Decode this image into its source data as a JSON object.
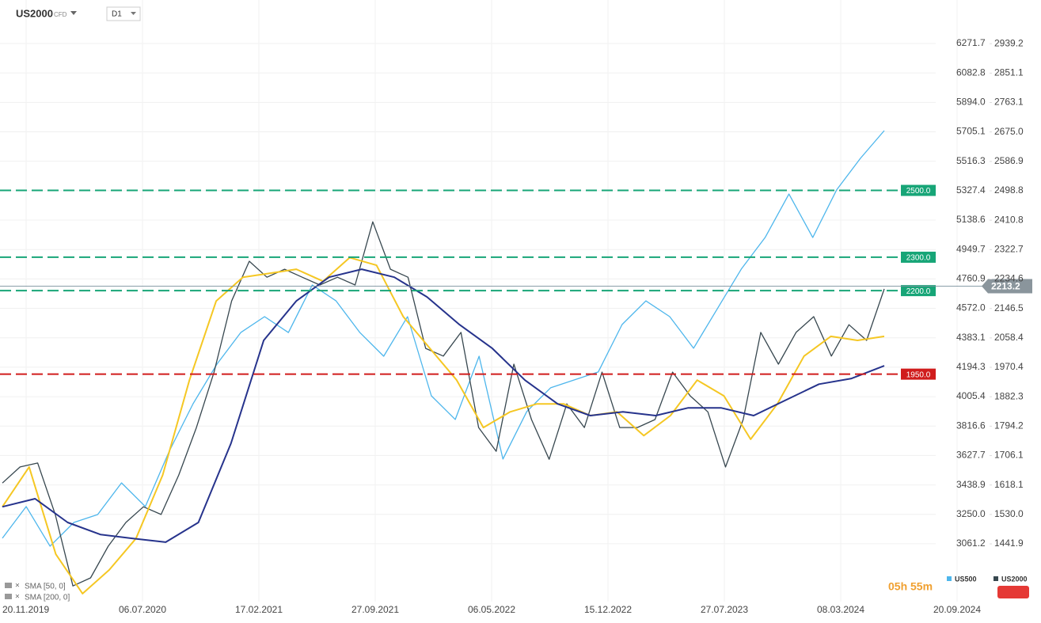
{
  "chart_data": {
    "type": "line",
    "title": "US2000",
    "subtitle": "CFD",
    "timeframe": "D1",
    "countdown": "05h 55m",
    "x_labels": [
      "20.11.2019",
      "06.07.2020",
      "17.02.2021",
      "27.09.2021",
      "06.05.2022",
      "15.12.2022",
      "27.07.2023",
      "08.03.2024",
      "20.09.2024"
    ],
    "ylim": [
      2690,
      6551
    ],
    "yticks": [
      6271.7,
      6082.8,
      {
        "value": 5894,
        "label": "5894.0"
      },
      5705.1,
      5516.3,
      5327.4,
      5138.6,
      4949.7,
      4760.9,
      {
        "value": 4572,
        "label": "4572.0"
      },
      4383.1,
      4194.3,
      4005.4,
      3816.6,
      3627.7,
      3438.9,
      {
        "value": 3250,
        "label": "3250.0"
      },
      3061.2
    ],
    "y2lim": [
      1269,
      3070
    ],
    "y2ticks": [
      2939.2,
      2851.1,
      2763.1,
      {
        "value": 2675,
        "label": "2675.0"
      },
      2586.9,
      2498.8,
      2410.8,
      2322.7,
      2234.6,
      2146.5,
      2058.4,
      1970.4,
      1882.3,
      1794.2,
      1706.1,
      1618.1,
      {
        "value": 1530,
        "label": "1530.0"
      },
      1441.9
    ],
    "grid": true,
    "last_value": 2213.2,
    "levels": [
      {
        "value": 2500,
        "label": "2500.0",
        "color": "#17a577"
      },
      {
        "value": 2300,
        "label": "2300.0",
        "color": "#17a577"
      },
      {
        "value": 2200,
        "label": "2200.0",
        "color": "#17a577"
      },
      {
        "value": 1950,
        "label": "1950.0",
        "color": "#d01c1c"
      }
    ],
    "series": [
      {
        "name": "US500",
        "color": "#4db6ec",
        "axis": "y",
        "values": [
          3097,
          3300,
          3046,
          3198,
          3249,
          3452,
          3300,
          3655,
          3960,
          4214,
          4417,
          4519,
          4417,
          4722,
          4620,
          4417,
          4265,
          4519,
          4011,
          3859,
          4265,
          3605,
          3910,
          4062,
          4113,
          4164,
          4468,
          4620,
          4519,
          4316,
          4570,
          4824,
          5027,
          5306,
          5027,
          5332,
          5535,
          5713
        ]
      },
      {
        "name": "US2000",
        "color": "#37474f",
        "axis": "y2",
        "values": [
          1624,
          1672,
          1684,
          1530,
          1316,
          1340,
          1435,
          1506,
          1553,
          1530,
          1648,
          1790,
          1956,
          2169,
          2288,
          2240,
          2264,
          2240,
          2217,
          2240,
          2217,
          2406,
          2264,
          2240,
          2027,
          2004,
          2075,
          1790,
          1719,
          1980,
          1814,
          1695,
          1861,
          1790,
          1956,
          1790,
          1790,
          1814,
          1956,
          1885,
          1837,
          1672,
          1814,
          2075,
          1980,
          2075,
          2122,
          2004,
          2098,
          2051,
          2205
        ]
      },
      {
        "name": "SMA [50, 0]",
        "color": "#f5c723",
        "axis": "y2",
        "values": [
          1553,
          1672,
          1411,
          1293,
          1364,
          1458,
          1648,
          1932,
          2169,
          2240,
          2252,
          2264,
          2228,
          2299,
          2276,
          2122,
          2027,
          1932,
          1790,
          1837,
          1861,
          1861,
          1826,
          1837,
          1766,
          1826,
          1932,
          1885,
          1755,
          1861,
          2004,
          2063,
          2051,
          2063
        ]
      },
      {
        "name": "SMA [200, 0]",
        "color": "#26338c",
        "axis": "y2",
        "values": [
          1553,
          1577,
          1506,
          1470,
          1458,
          1447,
          1506,
          1743,
          2051,
          2169,
          2240,
          2264,
          2240,
          2181,
          2098,
          2027,
          1932,
          1861,
          1826,
          1837,
          1826,
          1849,
          1849,
          1826,
          1873,
          1920,
          1937,
          1975
        ]
      }
    ]
  }
}
